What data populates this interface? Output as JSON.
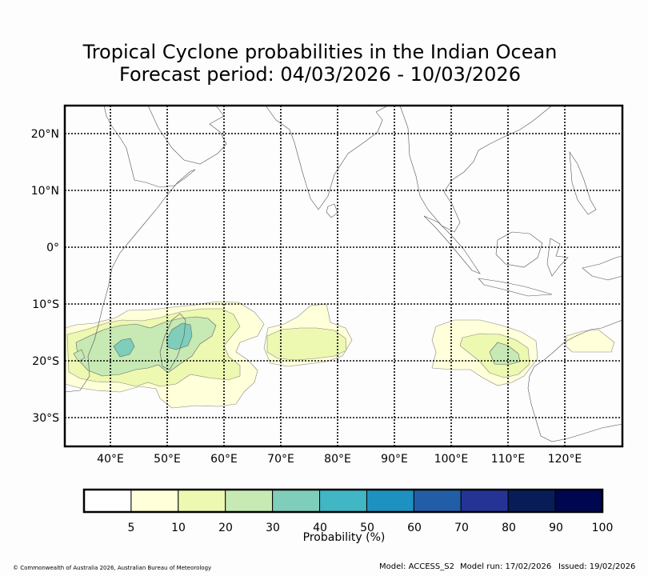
{
  "title_line1": "Tropical Cyclone probabilities in the Indian Ocean",
  "title_line2": "Forecast period: 04/03/2026 - 10/03/2026",
  "map": {
    "lon_range": [
      32,
      130
    ],
    "lat_range": [
      -35,
      25
    ],
    "lon_ticks": [
      40,
      50,
      60,
      70,
      80,
      90,
      100,
      110,
      120
    ],
    "lat_ticks": [
      20,
      10,
      0,
      -10,
      -20,
      -30
    ],
    "lon_labels": [
      "40°E",
      "50°E",
      "60°E",
      "70°E",
      "80°E",
      "90°E",
      "100°E",
      "110°E",
      "120°E"
    ],
    "lat_labels": [
      "20°N",
      "10°N",
      "0°",
      "10°S",
      "20°S",
      "30°S"
    ]
  },
  "colorbar": {
    "label": "Probability (%)",
    "tick_labels": [
      "5",
      "10",
      "20",
      "30",
      "40",
      "50",
      "60",
      "70",
      "80",
      "90",
      "100"
    ],
    "colors": [
      "#ffffff",
      "#ffffd9",
      "#edf8b1",
      "#c7e9b4",
      "#7fcdbb",
      "#41b6c4",
      "#1d91c0",
      "#225ea8",
      "#253494",
      "#081d58",
      "#000650"
    ]
  },
  "footer": {
    "copyright": "© Commonwealth of Australia 2026, Australian Bureau of Meteorology",
    "model": "Model: ACCESS_S2",
    "model_run": "Model run: 17/02/2026",
    "issued": "Issued: 19/02/2026"
  }
}
